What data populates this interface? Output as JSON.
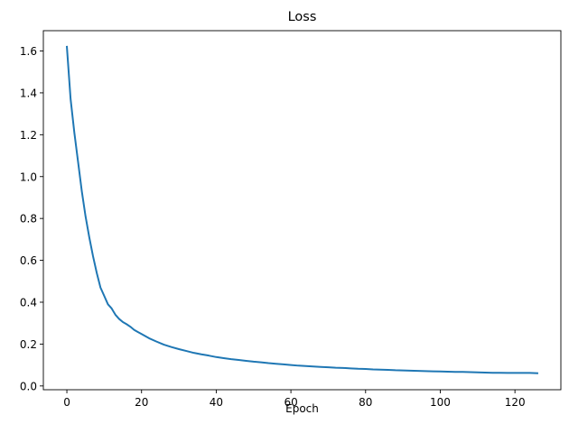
{
  "chart_data": {
    "type": "line",
    "title": "Loss",
    "xlabel": "Epoch",
    "ylabel": "",
    "xlim": [
      -6.3,
      132.3
    ],
    "ylim": [
      -0.018,
      1.697
    ],
    "xticks": [
      0,
      20,
      40,
      60,
      80,
      100,
      120
    ],
    "xtick_labels": [
      "0",
      "20",
      "40",
      "60",
      "80",
      "100",
      "120"
    ],
    "yticks": [
      0.0,
      0.2,
      0.4,
      0.6,
      0.8,
      1.0,
      1.2,
      1.4,
      1.6
    ],
    "ytick_labels": [
      "0.0",
      "0.2",
      "0.4",
      "0.6",
      "0.8",
      "1.0",
      "1.2",
      "1.4",
      "1.6"
    ],
    "grid": false,
    "legend": "none",
    "colors": {
      "line": "#1f77b4",
      "axes": "#000000",
      "background": "#ffffff"
    },
    "series": [
      {
        "x": [
          0,
          1,
          2,
          3,
          4,
          5,
          6,
          7,
          8,
          9,
          10,
          11,
          12,
          13,
          14,
          15,
          16,
          17,
          18,
          19,
          20,
          22,
          24,
          26,
          28,
          30,
          32,
          34,
          36,
          38,
          40,
          42,
          44,
          46,
          48,
          50,
          52,
          54,
          56,
          58,
          60,
          62,
          64,
          66,
          68,
          70,
          72,
          74,
          76,
          78,
          80,
          82,
          84,
          86,
          88,
          90,
          92,
          94,
          96,
          98,
          100,
          102,
          104,
          106,
          108,
          110,
          112,
          114,
          116,
          118,
          120,
          122,
          124,
          126
        ],
        "values": [
          1.62,
          1.37,
          1.21,
          1.07,
          0.93,
          0.81,
          0.71,
          0.62,
          0.54,
          0.47,
          0.43,
          0.39,
          0.37,
          0.34,
          0.32,
          0.305,
          0.295,
          0.283,
          0.268,
          0.258,
          0.248,
          0.228,
          0.212,
          0.197,
          0.186,
          0.176,
          0.167,
          0.158,
          0.151,
          0.145,
          0.138,
          0.133,
          0.128,
          0.124,
          0.12,
          0.116,
          0.113,
          0.109,
          0.106,
          0.103,
          0.1,
          0.097,
          0.095,
          0.093,
          0.091,
          0.089,
          0.087,
          0.086,
          0.084,
          0.082,
          0.081,
          0.079,
          0.078,
          0.077,
          0.075,
          0.074,
          0.073,
          0.072,
          0.071,
          0.07,
          0.069,
          0.068,
          0.067,
          0.067,
          0.066,
          0.065,
          0.064,
          0.063,
          0.063,
          0.062,
          0.062,
          0.062,
          0.062,
          0.061
        ]
      }
    ]
  }
}
